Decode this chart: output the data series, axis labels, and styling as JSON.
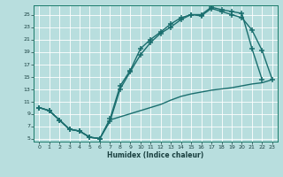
{
  "xlabel": "Humidex (Indice chaleur)",
  "bg_color": "#b8dede",
  "grid_color": "#c8e8e8",
  "line_color": "#1a6e6e",
  "xlim": [
    -0.5,
    23.5
  ],
  "ylim": [
    4.5,
    26.5
  ],
  "xticks": [
    0,
    1,
    2,
    3,
    4,
    5,
    6,
    7,
    8,
    9,
    10,
    11,
    12,
    13,
    14,
    15,
    16,
    17,
    18,
    19,
    20,
    21,
    22,
    23
  ],
  "yticks": [
    5,
    7,
    9,
    11,
    13,
    15,
    17,
    19,
    21,
    23,
    25
  ],
  "curve_up_x": [
    0,
    1,
    2,
    3,
    4,
    5,
    6,
    7,
    8,
    9,
    10,
    11,
    12,
    13,
    14,
    15,
    16,
    17,
    18,
    19,
    20,
    21,
    22
  ],
  "curve_up_y": [
    10,
    9.5,
    8,
    6.5,
    6.2,
    5.2,
    5.0,
    8.2,
    13.5,
    16.0,
    19.5,
    21.0,
    22.2,
    23.5,
    24.5,
    25.0,
    25.0,
    26.2,
    25.8,
    25.5,
    25.2,
    19.5,
    14.5
  ],
  "curve_mid_x": [
    0,
    1,
    2,
    3,
    4,
    5,
    6,
    7,
    8,
    9,
    10,
    11,
    12,
    13,
    14,
    15,
    16,
    17,
    18,
    19,
    20,
    21,
    22,
    23
  ],
  "curve_mid_y": [
    10,
    9.5,
    8,
    6.5,
    6.2,
    5.2,
    5.0,
    7.8,
    13.0,
    15.8,
    18.5,
    20.5,
    22.0,
    23.0,
    24.2,
    25.0,
    24.8,
    26.0,
    25.5,
    25.0,
    24.5,
    22.5,
    19.2,
    14.5
  ],
  "curve_low_x": [
    0,
    1,
    2,
    3,
    4,
    5,
    6,
    7,
    8,
    9,
    10,
    11,
    12,
    13,
    14,
    15,
    16,
    17,
    18,
    19,
    20,
    21,
    22,
    23
  ],
  "curve_low_y": [
    10,
    9.5,
    8,
    6.5,
    6.2,
    5.2,
    5.0,
    8.0,
    8.5,
    9.0,
    9.5,
    10.0,
    10.5,
    11.2,
    11.8,
    12.2,
    12.5,
    12.8,
    13.0,
    13.2,
    13.5,
    13.8,
    14.0,
    14.5
  ]
}
